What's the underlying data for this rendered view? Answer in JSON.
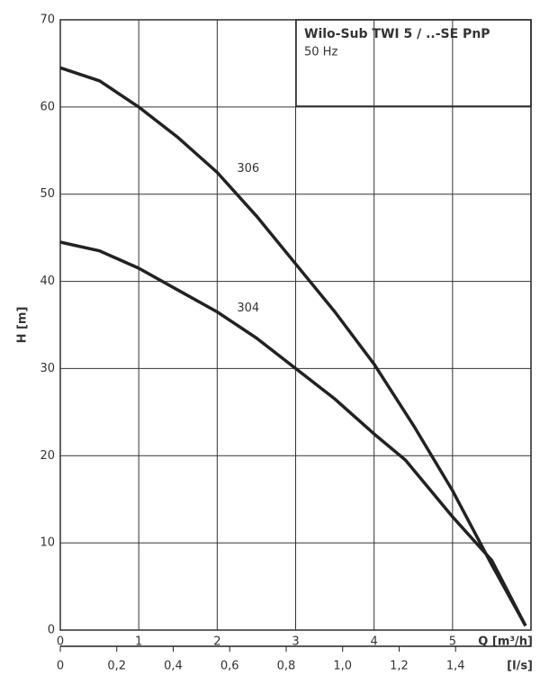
{
  "chart_data": {
    "type": "line",
    "title": "Wilo-Sub TWI 5 / ..-SE PnP",
    "subtitle": "50 Hz",
    "y_label": "H [m]",
    "x_label": "Q [m³/h]",
    "x2_label": "[l/s]",
    "xlim": [
      0,
      6
    ],
    "xticks": [
      0,
      1,
      2,
      3,
      4,
      5
    ],
    "ylim": [
      0,
      70
    ],
    "yticks": [
      0,
      10,
      20,
      30,
      40,
      50,
      60,
      70
    ],
    "x2lim": [
      0,
      1.667
    ],
    "x2ticks": [
      0,
      {
        "value": 0.2,
        "label": "0,2"
      },
      {
        "value": 0.4,
        "label": "0,4"
      },
      {
        "value": 0.6,
        "label": "0,6"
      },
      {
        "value": 0.8,
        "label": "0,8"
      },
      {
        "value": 1.0,
        "label": "1,0"
      },
      {
        "value": 1.2,
        "label": "1,2"
      },
      {
        "value": 1.4,
        "label": "1,4"
      }
    ],
    "grid": true,
    "series": [
      {
        "name": "306",
        "color": "#222222",
        "x": [
          0,
          0.5,
          1,
          1.5,
          2,
          2.5,
          3,
          3.5,
          4,
          4.5,
          5,
          5.5,
          5.93
        ],
        "values": [
          64.5,
          63,
          60,
          56.5,
          52.5,
          47.5,
          42,
          36.5,
          30.5,
          23.5,
          16,
          7.5,
          0.5
        ]
      },
      {
        "name": "304",
        "color": "#222222",
        "x": [
          0,
          0.5,
          1,
          1.5,
          2,
          2.5,
          3,
          3.5,
          4,
          4.4,
          5,
          5.5,
          5.93
        ],
        "values": [
          44.5,
          43.5,
          41.5,
          39,
          36.5,
          33.5,
          30,
          26.5,
          22.5,
          19.5,
          13,
          8,
          0.5
        ]
      }
    ]
  }
}
